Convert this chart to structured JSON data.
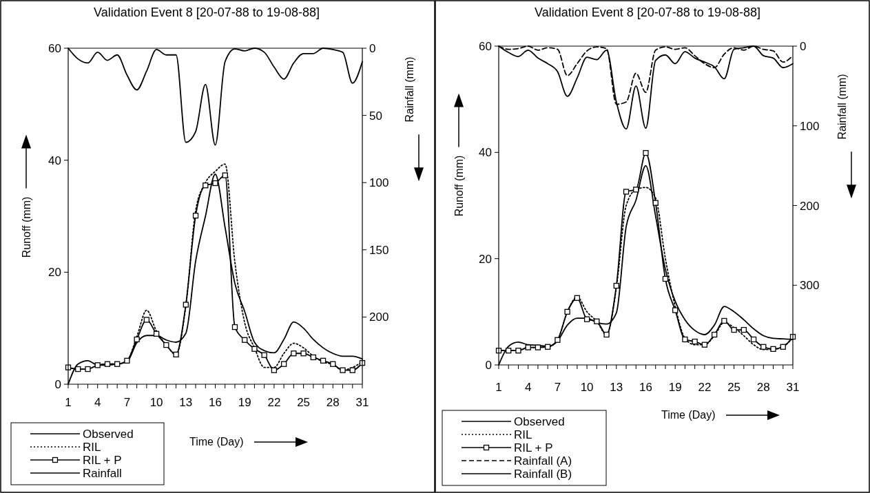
{
  "chart_data": [
    {
      "type": "line",
      "title": "Validation Event 8 [20-07-88 to 19-08-88]",
      "xlabel": "Time (Day)",
      "ylabel": "Runoff (mm)",
      "y2label": "Rainfall (mm)",
      "x": [
        1,
        2,
        3,
        4,
        5,
        6,
        7,
        8,
        9,
        10,
        11,
        12,
        13,
        14,
        15,
        16,
        17,
        18,
        19,
        20,
        21,
        22,
        23,
        24,
        25,
        26,
        27,
        28,
        29,
        30,
        31
      ],
      "xlim": [
        1,
        31
      ],
      "xticks": [
        1,
        {
          "value": 2,
          "label": null
        },
        {
          "value": 3,
          "label": null
        },
        4,
        {
          "value": 5,
          "label": null
        },
        {
          "value": 6,
          "label": null
        },
        7,
        {
          "value": 8,
          "label": null
        },
        {
          "value": 9,
          "label": null
        },
        10,
        {
          "value": 11,
          "label": null
        },
        {
          "value": 12,
          "label": null
        },
        13,
        {
          "value": 14,
          "label": null
        },
        {
          "value": 15,
          "label": null
        },
        16,
        {
          "value": 17,
          "label": null
        },
        {
          "value": 18,
          "label": null
        },
        19,
        {
          "value": 20,
          "label": null
        },
        {
          "value": 21,
          "label": null
        },
        22,
        {
          "value": 23,
          "label": null
        },
        {
          "value": 24,
          "label": null
        },
        25,
        {
          "value": 26,
          "label": null
        },
        {
          "value": 27,
          "label": null
        },
        28,
        {
          "value": 29,
          "label": null
        },
        {
          "value": 30,
          "label": null
        },
        31
      ],
      "ylim": [
        0,
        60
      ],
      "yticks": [
        0,
        20,
        40,
        60
      ],
      "y2lim": [
        250,
        0
      ],
      "y2ticks": [
        0,
        50,
        100,
        150,
        200
      ],
      "legend": "bottom left",
      "grid": false,
      "series": [
        {
          "name": "Observed",
          "color": "#000000",
          "line_style": "solid",
          "marker": "none",
          "values": [
            0,
            3.6,
            4.2,
            3.4,
            3.4,
            3.6,
            4,
            7.4,
            8.7,
            8.7,
            7.9,
            7.5,
            9.1,
            22,
            30,
            37.5,
            28,
            18,
            13,
            7.5,
            6,
            5.6,
            8,
            11.1,
            10,
            8,
            6.5,
            5.5,
            5,
            5,
            4.5
          ]
        },
        {
          "name": "RIL",
          "color": "#000000",
          "line_style": "dotted",
          "marker": "none",
          "values": [
            3,
            2.7,
            2.7,
            3.4,
            3.6,
            3.6,
            4.2,
            8.5,
            13.2,
            9.5,
            7,
            5.3,
            14,
            31,
            36,
            38,
            39.3,
            21.8,
            11,
            6.5,
            3,
            3,
            5.5,
            7.3,
            6.5,
            5,
            4,
            3.5,
            2.5,
            3,
            4
          ]
        },
        {
          "name": "RIL + P",
          "color": "#000000",
          "line_style": "solid",
          "marker": "square",
          "values": [
            3,
            2.7,
            2.7,
            3.4,
            3.6,
            3.6,
            4.2,
            8,
            11.5,
            9,
            7,
            5.3,
            14.2,
            30.1,
            35.5,
            35.9,
            37.3,
            10.2,
            7.9,
            6.3,
            5.2,
            2.5,
            3.6,
            5.5,
            5.5,
            4.8,
            4.2,
            3.6,
            2.5,
            2.5,
            3.8
          ]
        },
        {
          "name": "Rainfall",
          "color": "#000000",
          "line_style": "solid",
          "marker": "none",
          "axis": "y2",
          "values": [
            0,
            8,
            11,
            3,
            9,
            5,
            20,
            31,
            17,
            1,
            5,
            5,
            70,
            62,
            27,
            72,
            10,
            0.5,
            2,
            0,
            3,
            14,
            23,
            11,
            4,
            4,
            0,
            1,
            3,
            26,
            10
          ]
        }
      ]
    },
    {
      "type": "line",
      "title": "Validation Event 8 [20-07-88 to 19-08-88]",
      "xlabel": "Time (Day)",
      "ylabel": "Runoff (mm)",
      "y2label": "Rainfall (mm)",
      "x": [
        1,
        2,
        3,
        4,
        5,
        6,
        7,
        8,
        9,
        10,
        11,
        12,
        13,
        14,
        15,
        16,
        17,
        18,
        19,
        20,
        21,
        22,
        23,
        24,
        25,
        26,
        27,
        28,
        29,
        30,
        31
      ],
      "xlim": [
        1,
        31
      ],
      "xticks": [
        1,
        {
          "value": 2,
          "label": null
        },
        {
          "value": 3,
          "label": null
        },
        4,
        {
          "value": 5,
          "label": null
        },
        {
          "value": 6,
          "label": null
        },
        7,
        {
          "value": 8,
          "label": null
        },
        {
          "value": 9,
          "label": null
        },
        10,
        {
          "value": 11,
          "label": null
        },
        {
          "value": 12,
          "label": null
        },
        13,
        {
          "value": 14,
          "label": null
        },
        {
          "value": 15,
          "label": null
        },
        16,
        {
          "value": 17,
          "label": null
        },
        {
          "value": 18,
          "label": null
        },
        19,
        {
          "value": 20,
          "label": null
        },
        {
          "value": 21,
          "label": null
        },
        22,
        {
          "value": 23,
          "label": null
        },
        {
          "value": 24,
          "label": null
        },
        25,
        {
          "value": 26,
          "label": null
        },
        {
          "value": 27,
          "label": null
        },
        28,
        {
          "value": 29,
          "label": null
        },
        {
          "value": 30,
          "label": null
        },
        31
      ],
      "ylim": [
        0,
        60
      ],
      "yticks": [
        0,
        20,
        40,
        60
      ],
      "y2lim": [
        400,
        0
      ],
      "y2ticks": [
        0,
        100,
        200,
        300
      ],
      "legend": "bottom left",
      "grid": false,
      "series": [
        {
          "name": "Observed",
          "color": "#000000",
          "line_style": "solid",
          "marker": "none",
          "values": [
            0,
            3.5,
            4.3,
            3.8,
            3.7,
            3.5,
            4.5,
            7.5,
            8.8,
            8.8,
            8,
            7.7,
            9.8,
            26,
            31,
            37.5,
            28,
            18,
            12,
            8.5,
            6.5,
            5.7,
            7.5,
            11,
            10,
            8.5,
            6.8,
            5.5,
            5,
            4.9,
            4.8
          ]
        },
        {
          "name": "RIL",
          "color": "#000000",
          "line_style": "dotted",
          "marker": "none",
          "values": [
            2.7,
            2.7,
            2.7,
            3.3,
            3.3,
            3.4,
            4.7,
            10,
            12.8,
            10,
            8.2,
            5.7,
            14.5,
            30,
            33,
            33.4,
            31.4,
            20,
            11,
            5,
            3.8,
            3.8,
            5.5,
            8,
            7,
            5.5,
            3.8,
            2.9,
            2.9,
            3.5,
            5
          ]
        },
        {
          "name": "RIL + P",
          "color": "#000000",
          "line_style": "solid",
          "marker": "square",
          "values": [
            2.7,
            2.7,
            2.7,
            3.3,
            3.3,
            3.4,
            4.7,
            10,
            12.6,
            8.6,
            8.2,
            5.7,
            14.9,
            32.6,
            33,
            39.9,
            30.5,
            16.2,
            10.3,
            4.8,
            4.4,
            3.8,
            5.7,
            8.3,
            6.6,
            6.6,
            4.8,
            3.4,
            3,
            3.4,
            5.3
          ]
        },
        {
          "name": "Rainfall (A)",
          "color": "#000000",
          "line_style": "dashed",
          "marker": "none",
          "axis": "y2",
          "values": [
            0,
            4,
            3,
            0,
            5,
            2,
            4,
            37,
            22,
            6,
            1,
            3,
            73,
            70,
            34,
            58,
            5,
            1,
            4,
            2,
            12,
            22,
            27,
            10,
            2,
            5,
            0,
            4,
            6,
            20,
            12
          ]
        },
        {
          "name": "Rainfall (B)",
          "color": "#000000",
          "line_style": "solid",
          "marker": "none",
          "axis": "y2",
          "values": [
            0,
            8,
            13,
            5,
            15,
            22,
            32,
            63,
            40,
            14,
            17,
            5,
            70,
            104,
            50,
            103,
            18,
            11,
            22,
            7,
            15,
            20,
            26,
            41,
            4,
            2,
            0,
            12,
            15,
            27,
            22
          ]
        }
      ]
    }
  ]
}
